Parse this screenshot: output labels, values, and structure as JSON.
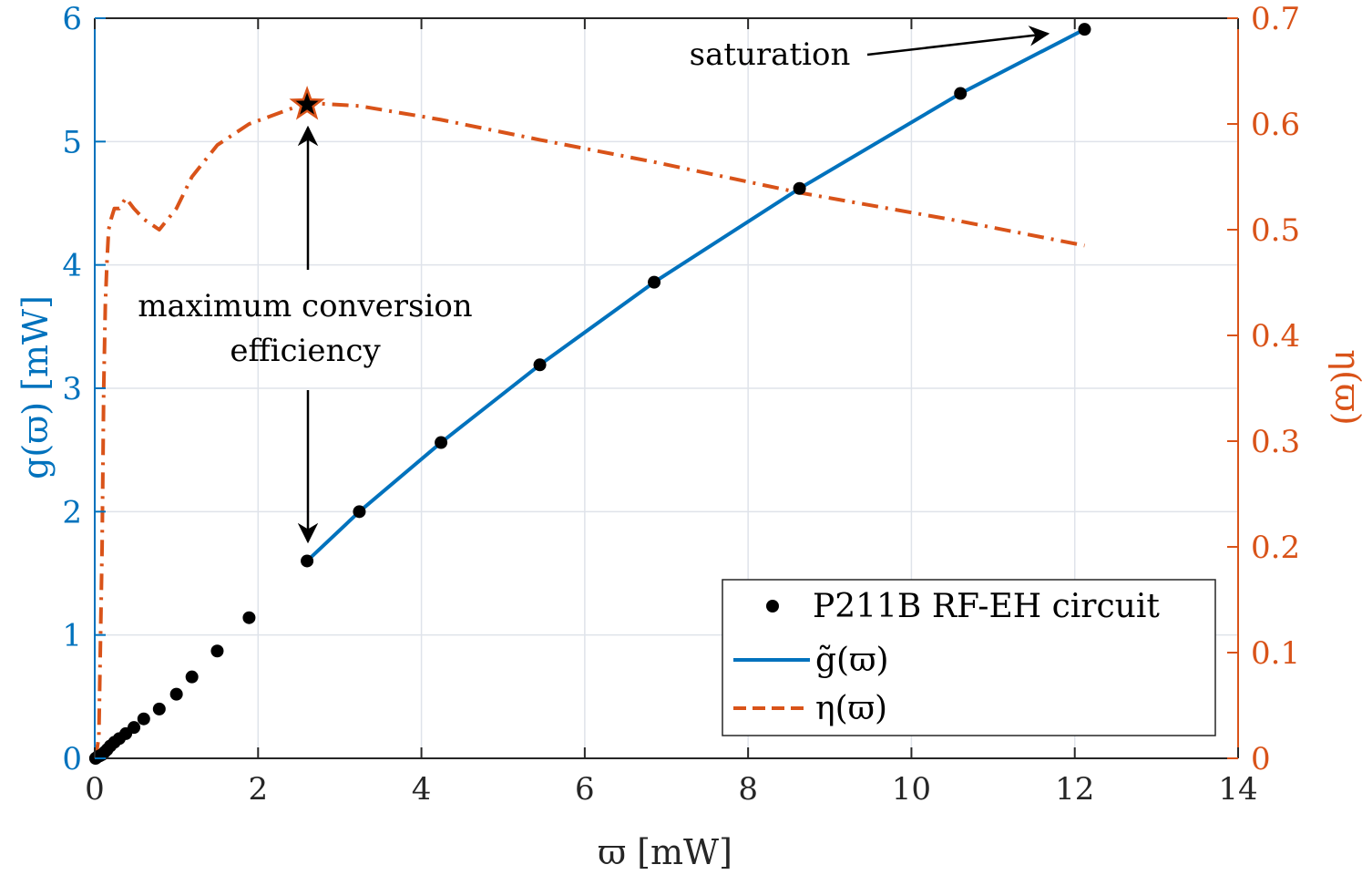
{
  "chart_data": {
    "type": "line",
    "xlabel": "ϖ [mW]",
    "ylabel_left": "g(ϖ) [mW]",
    "ylabel_right": "η(ϖ)",
    "xlim": [
      0,
      14
    ],
    "ylim_left": [
      0,
      6
    ],
    "ylim_right": [
      0,
      0.7
    ],
    "grid": true,
    "xticks": [
      "0",
      "2",
      "4",
      "6",
      "8",
      "10",
      "12",
      "14"
    ],
    "xtick_values": [
      0,
      2,
      4,
      6,
      8,
      10,
      12,
      14
    ],
    "yticks_left": [
      "0",
      "1",
      "2",
      "3",
      "4",
      "5",
      "6"
    ],
    "ytick_values_left": [
      0,
      1,
      2,
      3,
      4,
      5,
      6
    ],
    "yticks_right": [
      "0",
      "0.1",
      "0.2",
      "0.3",
      "0.4",
      "0.5",
      "0.6",
      "0.7"
    ],
    "ytick_values_right": [
      0,
      0.1,
      0.2,
      0.3,
      0.4,
      0.5,
      0.6,
      0.7
    ],
    "colors": {
      "blue": "#0072BD",
      "orange": "#D95319",
      "black": "#000000"
    },
    "series": [
      {
        "name": "P211B RF-EH circuit",
        "kind": "scatter",
        "axis": "left",
        "x": [
          0.01,
          0.03,
          0.06,
          0.09,
          0.12,
          0.15,
          0.19,
          0.24,
          0.3,
          0.38,
          0.48,
          0.6,
          0.79,
          1.0,
          1.19,
          1.5,
          1.89,
          2.6,
          3.24,
          4.24,
          5.45,
          6.85,
          8.63,
          10.6,
          12.12
        ],
        "y": [
          0.0,
          0.01,
          0.02,
          0.03,
          0.05,
          0.07,
          0.1,
          0.13,
          0.16,
          0.2,
          0.25,
          0.32,
          0.4,
          0.52,
          0.66,
          0.87,
          1.14,
          1.6,
          2.0,
          2.56,
          3.19,
          3.86,
          4.62,
          5.39,
          5.91
        ]
      },
      {
        "name": "g̃(ϖ)",
        "kind": "line",
        "axis": "left",
        "x": [
          2.6,
          3.24,
          4.24,
          5.45,
          6.85,
          8.63,
          10.6,
          12.12
        ],
        "y": [
          1.6,
          2.0,
          2.56,
          3.19,
          3.86,
          4.62,
          5.39,
          5.91
        ]
      },
      {
        "name": "η(ϖ)",
        "kind": "line",
        "axis": "right",
        "dash": "dashdot",
        "x": [
          0.01,
          0.05,
          0.09,
          0.11,
          0.13,
          0.15,
          0.17,
          0.2,
          0.24,
          0.3,
          0.38,
          0.48,
          0.6,
          0.79,
          1.0,
          1.19,
          1.5,
          1.89,
          2.6,
          3.24,
          4.24,
          5.45,
          6.85,
          8.63,
          10.6,
          12.12
        ],
        "y": [
          0.0,
          0.02,
          0.2,
          0.35,
          0.43,
          0.47,
          0.5,
          0.51,
          0.52,
          0.52,
          0.53,
          0.52,
          0.51,
          0.5,
          0.52,
          0.55,
          0.58,
          0.6,
          0.62,
          0.617,
          0.604,
          0.585,
          0.564,
          0.535,
          0.508,
          0.485
        ]
      }
    ],
    "annotations": {
      "saturation": "saturation",
      "max_line1": "maximum conversion",
      "max_line2": "efficiency"
    },
    "star_marker": {
      "x": 2.6,
      "y_left": 5.3
    }
  }
}
